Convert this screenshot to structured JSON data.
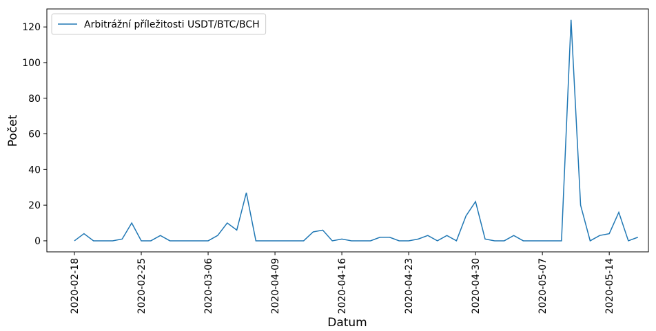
{
  "chart_data": {
    "type": "line",
    "xlabel": "Datum",
    "ylabel": "Počet",
    "categories": [
      "2020-02-18",
      null,
      null,
      null,
      null,
      null,
      null,
      "2020-02-25",
      null,
      null,
      null,
      null,
      null,
      null,
      "2020-03-06",
      null,
      null,
      null,
      null,
      null,
      null,
      "2020-04-09",
      null,
      null,
      null,
      null,
      null,
      null,
      "2020-04-16",
      null,
      null,
      null,
      null,
      null,
      null,
      "2020-04-23",
      null,
      null,
      null,
      null,
      null,
      null,
      "2020-04-30",
      null,
      null,
      null,
      null,
      null,
      null,
      "2020-05-07",
      null,
      null,
      null,
      null,
      null,
      null,
      "2020-05-14",
      null,
      null,
      null
    ],
    "series": [
      {
        "name": "Arbitrážní příležitosti USDT/BTC/BCH",
        "color": "#1f77b4",
        "values": [
          0,
          4,
          0,
          0,
          0,
          1,
          10,
          0,
          0,
          3,
          0,
          0,
          0,
          0,
          0,
          3,
          10,
          6,
          27,
          0,
          0,
          0,
          0,
          0,
          0,
          5,
          6,
          0,
          1,
          0,
          0,
          0,
          2,
          2,
          0,
          0,
          1,
          3,
          0,
          3,
          0,
          14,
          22,
          1,
          0,
          0,
          3,
          0,
          0,
          0,
          0,
          0,
          124,
          20,
          0,
          3,
          4,
          16,
          0,
          2
        ]
      }
    ],
    "ylim": [
      -6.2,
      130.1
    ],
    "yticks": [
      0,
      20,
      40,
      60,
      80,
      100,
      120
    ],
    "legend": "upper left"
  }
}
